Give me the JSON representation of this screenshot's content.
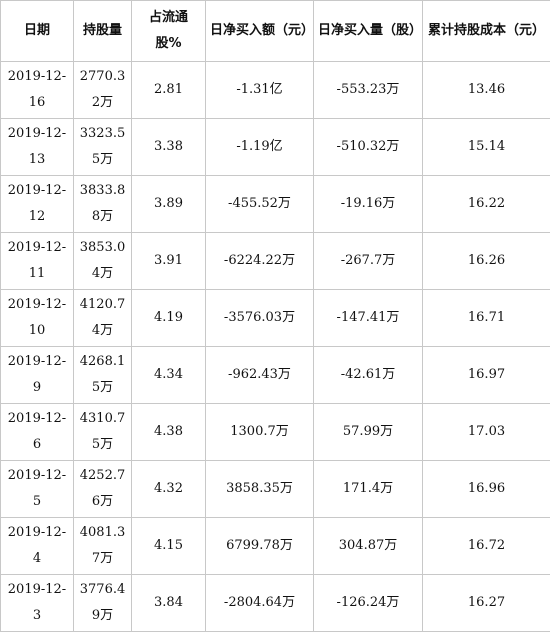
{
  "headers": [
    "日期",
    "持股量",
    "占流通股%",
    "日净买入额（元）",
    "日净买入量（股）",
    "累计持股成本（元）"
  ],
  "rows": [
    {
      "date": "2019-12-16",
      "shares": "2770.32万",
      "ratio": "2.81",
      "net_amount": "-1.31亿",
      "net_volume": "-553.23万",
      "cost": "13.46"
    },
    {
      "date": "2019-12-13",
      "shares": "3323.55万",
      "ratio": "3.38",
      "net_amount": "-1.19亿",
      "net_volume": "-510.32万",
      "cost": "15.14"
    },
    {
      "date": "2019-12-12",
      "shares": "3833.88万",
      "ratio": "3.89",
      "net_amount": "-455.52万",
      "net_volume": "-19.16万",
      "cost": "16.22"
    },
    {
      "date": "2019-12-11",
      "shares": "3853.04万",
      "ratio": "3.91",
      "net_amount": "-6224.22万",
      "net_volume": "-267.7万",
      "cost": "16.26"
    },
    {
      "date": "2019-12-10",
      "shares": "4120.74万",
      "ratio": "4.19",
      "net_amount": "-3576.03万",
      "net_volume": "-147.41万",
      "cost": "16.71"
    },
    {
      "date": "2019-12-9",
      "shares": "4268.15万",
      "ratio": "4.34",
      "net_amount": "-962.43万",
      "net_volume": "-42.61万",
      "cost": "16.97"
    },
    {
      "date": "2019-12-6",
      "shares": "4310.75万",
      "ratio": "4.38",
      "net_amount": "1300.7万",
      "net_volume": "57.99万",
      "cost": "17.03"
    },
    {
      "date": "2019-12-5",
      "shares": "4252.76万",
      "ratio": "4.32",
      "net_amount": "3858.35万",
      "net_volume": "171.4万",
      "cost": "16.96"
    },
    {
      "date": "2019-12-4",
      "shares": "4081.37万",
      "ratio": "4.15",
      "net_amount": "6799.78万",
      "net_volume": "304.87万",
      "cost": "16.72"
    },
    {
      "date": "2019-12-3",
      "shares": "3776.49万",
      "ratio": "3.84",
      "net_amount": "-2804.64万",
      "net_volume": "-126.24万",
      "cost": "16.27"
    }
  ]
}
